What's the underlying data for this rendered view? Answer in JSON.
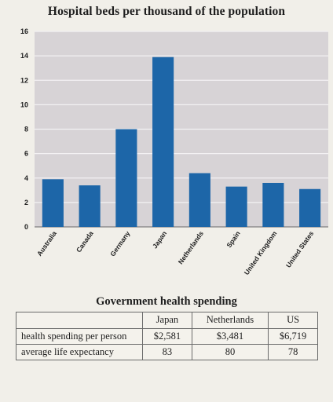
{
  "chart_data": {
    "type": "bar",
    "title": "Hospital beds per thousand of the population",
    "categories": [
      "Australia",
      "Canada",
      "Germany",
      "Japan",
      "Netherlands",
      "Spain",
      "United Kingdom",
      "United States"
    ],
    "values": [
      3.9,
      3.4,
      8.0,
      13.9,
      4.4,
      3.3,
      3.6,
      3.1
    ],
    "ylim": [
      0,
      16
    ],
    "yticks": [
      "0",
      "2",
      "4",
      "6",
      "8",
      "10",
      "12",
      "14",
      "16"
    ],
    "grid": true,
    "bar_color": "#1d66a8",
    "plot_background": "#d7d3d6"
  },
  "table": {
    "title": "Government health spending",
    "columns": [
      "Japan",
      "Netherlands",
      "US"
    ],
    "rows": [
      {
        "label": "health spending per person",
        "values": [
          "$2,581",
          "$3,481",
          "$6,719"
        ]
      },
      {
        "label": "average life expectancy",
        "values": [
          "83",
          "80",
          "78"
        ]
      }
    ]
  }
}
